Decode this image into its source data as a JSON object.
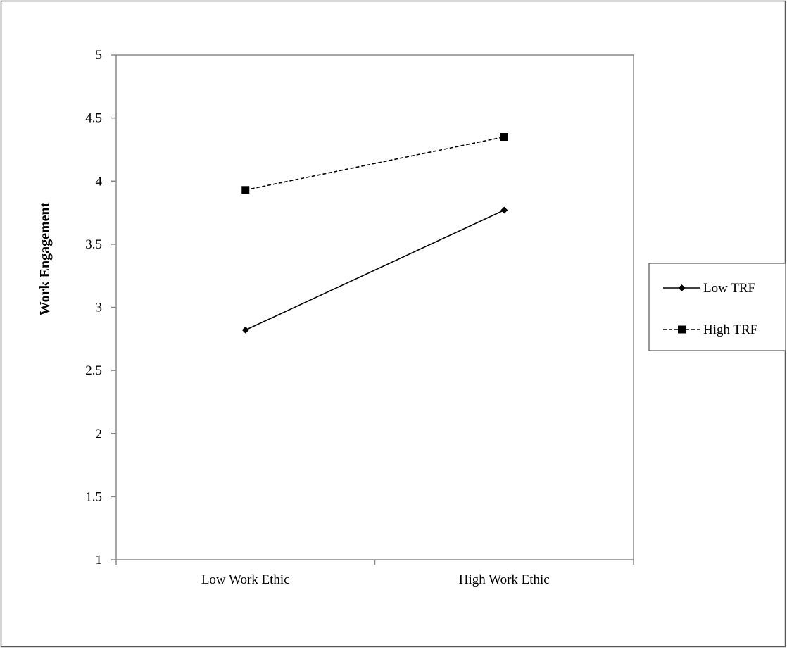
{
  "chart_data": {
    "type": "line",
    "title": "",
    "xlabel": "",
    "ylabel": "Work Engagement",
    "categories": [
      "Low Work Ethic",
      "High Work Ethic"
    ],
    "ylim": [
      1,
      5
    ],
    "yticks": [
      "1",
      "1.5",
      "2",
      "2.5",
      "3",
      "3.5",
      "4",
      "4.5",
      "5"
    ],
    "grid": false,
    "legend_position": "right",
    "series": [
      {
        "name": "Low TRF",
        "values": [
          2.82,
          3.77
        ],
        "marker": "diamond",
        "line_style": "solid",
        "color": "#000000"
      },
      {
        "name": "High TRF",
        "values": [
          3.93,
          4.35
        ],
        "marker": "square",
        "line_style": "dashed",
        "color": "#000000"
      }
    ]
  }
}
